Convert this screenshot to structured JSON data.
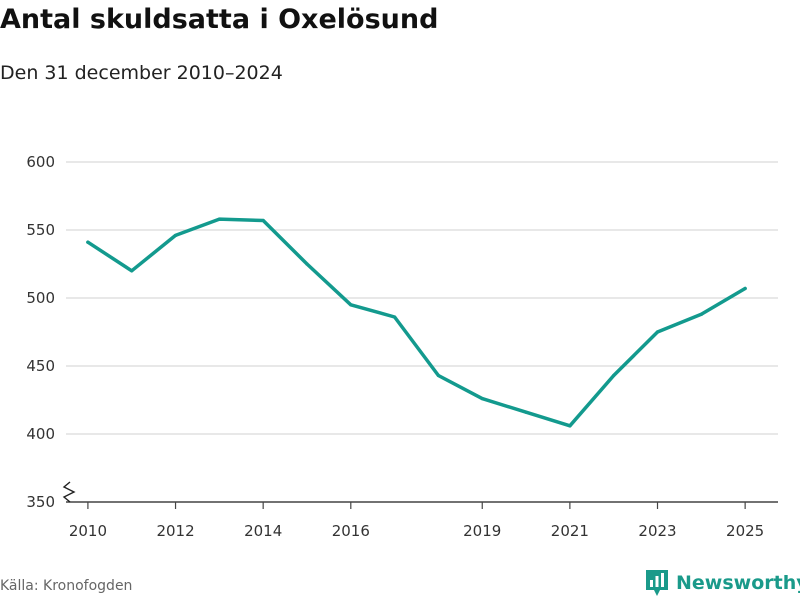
{
  "header": {
    "title": "Antal skuldsatta i Oxelösund",
    "subtitle": "Den 31 december 2010–2024"
  },
  "footer": {
    "source": "Källa: Kronofogden",
    "brand": "Newsworthy"
  },
  "colors": {
    "line": "#139a8e",
    "grid": "#d9d9d9",
    "axis": "#444444",
    "brand": "#1a9a8a"
  },
  "icons": {
    "brand_logo": "bar-chart-badge-icon",
    "axis_break": "zigzag-axis-break-icon"
  },
  "chart_data": {
    "type": "line",
    "title": "Antal skuldsatta i Oxelösund",
    "subtitle": "Den 31 december 2010–2024",
    "xlabel": "",
    "ylabel": "",
    "x": [
      2010,
      2011,
      2012,
      2013,
      2014,
      2015,
      2016,
      2017,
      2018,
      2019,
      2020,
      2021,
      2022,
      2023,
      2024,
      2025
    ],
    "series": [
      {
        "values": [
          541,
          520,
          546,
          558,
          557,
          525,
          495,
          486,
          443,
          426,
          416,
          406,
          443,
          475,
          488,
          507
        ]
      }
    ],
    "xticks": [
      "2010",
      "2012",
      "2014",
      "2016",
      "2019",
      "2021",
      "2023",
      "2025"
    ],
    "yticks": [
      "350",
      "400",
      "450",
      "500",
      "550",
      "600"
    ],
    "xlim": [
      2009.5,
      2025.75
    ],
    "ylim": [
      350,
      600
    ],
    "grid": true,
    "axis_break": true,
    "legend": "none"
  }
}
